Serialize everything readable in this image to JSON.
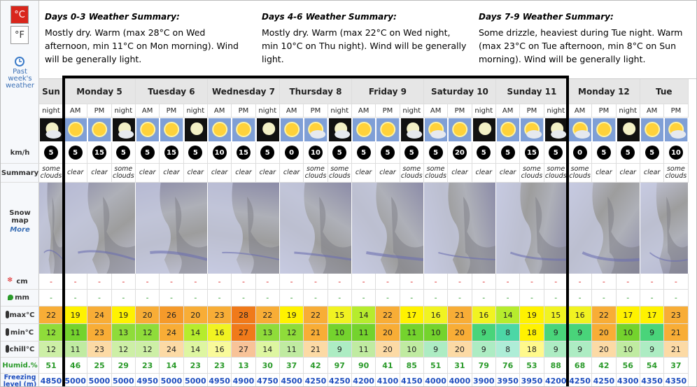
{
  "units": {
    "celsius": "°C",
    "fahrenheit": "°F"
  },
  "past_weather": "Past week's weather",
  "summaries": [
    {
      "title": "Days 0-3 Weather Summary:",
      "text": "Mostly dry. Warm (max 28°C on Wed afternoon, min 11°C on Mon morning). Wind will be generally light."
    },
    {
      "title": "Days 4-6 Weather Summary:",
      "text": "Mostly dry. Warm (max 22°C on Wed night, min 10°C on Thu night). Wind will be generally light."
    },
    {
      "title": "Days 7-9 Weather Summary:",
      "text": "Some drizzle, heaviest during Tue night. Warm (max 23°C on Tue afternoon, min 8°C on Sun morning). Wind will be generally light."
    }
  ],
  "row_labels": {
    "wind": "km/h",
    "summary": "Summary",
    "snow_map": "Snow map",
    "more": "More",
    "snow_cm": "cm",
    "rain_mm": "mm",
    "max_c": "max°C",
    "min_c": "min°C",
    "chill_c": "chill°C",
    "humidity": "Humid.%",
    "freezing": "Freezing level (m)"
  },
  "days": [
    {
      "name": "Sun",
      "periods": [
        "night"
      ]
    },
    {
      "name": "Monday 5",
      "periods": [
        "AM",
        "PM",
        "night"
      ]
    },
    {
      "name": "Tuesday 6",
      "periods": [
        "AM",
        "PM",
        "night"
      ]
    },
    {
      "name": "Wednesday 7",
      "periods": [
        "AM",
        "PM",
        "night"
      ]
    },
    {
      "name": "Thursday 8",
      "periods": [
        "AM",
        "PM",
        "night"
      ]
    },
    {
      "name": "Friday 9",
      "periods": [
        "AM",
        "PM",
        "night"
      ]
    },
    {
      "name": "Saturday 10",
      "periods": [
        "AM",
        "PM",
        "night"
      ]
    },
    {
      "name": "Sunday 11",
      "periods": [
        "AM",
        "PM",
        "night"
      ]
    },
    {
      "name": "Monday 12",
      "periods": [
        "AM",
        "PM",
        "night"
      ]
    },
    {
      "name": "Tue",
      "periods": [
        "AM",
        "PM"
      ]
    }
  ],
  "rows": {
    "wind": [
      5,
      5,
      15,
      5,
      5,
      15,
      5,
      10,
      15,
      5,
      0,
      10,
      5,
      5,
      5,
      5,
      5,
      20,
      5,
      5,
      15,
      5,
      0,
      5,
      5,
      5,
      10
    ],
    "summary": [
      "some clouds",
      "clear",
      "clear",
      "some clouds",
      "clear",
      "clear",
      "clear",
      "clear",
      "clear",
      "clear",
      "clear",
      "some clouds",
      "some clouds",
      "clear",
      "clear",
      "some clouds",
      "some clouds",
      "clear",
      "clear",
      "clear",
      "some clouds",
      "some clouds",
      "some clouds",
      "clear",
      "clear",
      "clear",
      "some clouds"
    ],
    "snow_cm": [
      "-",
      "-",
      "-",
      "-",
      "-",
      "-",
      "-",
      "-",
      "-",
      "-",
      "-",
      "-",
      "-",
      "-",
      "-",
      "-",
      "-",
      "-",
      "-",
      "-",
      "-",
      "-",
      "-",
      "-",
      "-",
      "-",
      "-"
    ],
    "rain_mm": [
      "-",
      "-",
      "-",
      "-",
      "-",
      "-",
      "-",
      "-",
      "-",
      "-",
      "-",
      "-",
      "-",
      "-",
      "-",
      "-",
      "-",
      "-",
      "-",
      "-",
      "-",
      "-",
      "-",
      "-",
      "-",
      "-",
      "-"
    ],
    "max_c": [
      22,
      19,
      24,
      19,
      20,
      26,
      20,
      23,
      28,
      22,
      19,
      22,
      15,
      14,
      22,
      17,
      16,
      21,
      16,
      14,
      19,
      15,
      16,
      22,
      17,
      17,
      23
    ],
    "min_c": [
      12,
      11,
      23,
      13,
      12,
      24,
      14,
      16,
      27,
      13,
      12,
      21,
      10,
      11,
      20,
      11,
      10,
      20,
      9,
      8,
      18,
      9,
      9,
      20,
      10,
      9,
      21
    ],
    "chill_c": [
      12,
      11,
      23,
      12,
      12,
      24,
      14,
      16,
      27,
      14,
      11,
      21,
      9,
      11,
      20,
      10,
      9,
      20,
      9,
      8,
      18,
      9,
      9,
      20,
      10,
      9,
      21
    ],
    "humidity": [
      51,
      46,
      25,
      29,
      23,
      14,
      23,
      23,
      13,
      30,
      37,
      42,
      97,
      90,
      41,
      85,
      51,
      31,
      79,
      76,
      53,
      88,
      68,
      42,
      56,
      54,
      37
    ],
    "freezing": [
      4850,
      5000,
      5000,
      5000,
      4950,
      5000,
      5000,
      4950,
      4900,
      4750,
      4500,
      4250,
      4250,
      4200,
      4100,
      4150,
      4000,
      4000,
      3900,
      3950,
      3950,
      4200,
      4250,
      4250,
      4300,
      4350,
      4350
    ]
  }
}
